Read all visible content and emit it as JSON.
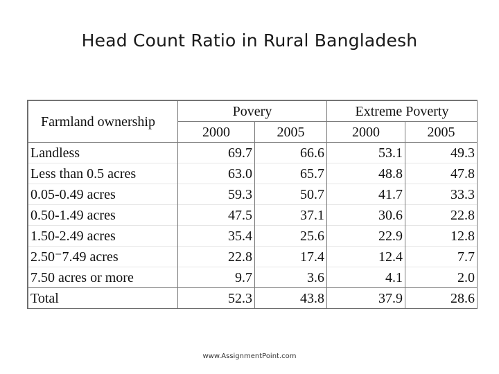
{
  "slide": {
    "title": "Head Count Ratio in Rural Bangladesh",
    "footer": "www.AssignmentPoint.com"
  },
  "table": {
    "row_header": "Farmland ownership",
    "groups": [
      "Povery",
      "Extreme Poverty"
    ],
    "years": [
      "2000",
      "2005",
      "2000",
      "2005"
    ],
    "rows": [
      {
        "label": "Landless",
        "values": [
          "69.7",
          "66.6",
          "53.1",
          "49.3"
        ]
      },
      {
        "label": "Less than 0.5 acres",
        "values": [
          "63.0",
          "65.7",
          "48.8",
          "47.8"
        ]
      },
      {
        "label": "0.05-0.49 acres",
        "values": [
          "59.3",
          "50.7",
          "41.7",
          "33.3"
        ]
      },
      {
        "label": "0.50-1.49 acres",
        "values": [
          "47.5",
          "37.1",
          "30.6",
          "22.8"
        ]
      },
      {
        "label": "1.50-2.49 acres",
        "values": [
          "35.4",
          "25.6",
          "22.9",
          "12.8"
        ]
      },
      {
        "label": "2.50⁻7.49 acres",
        "values": [
          "22.8",
          "17.4",
          "12.4",
          "7.7"
        ]
      },
      {
        "label": "7.50 acres or more",
        "values": [
          "9.7",
          "3.6",
          "4.1",
          "2.0"
        ]
      },
      {
        "label": "Total",
        "values": [
          "52.3",
          "43.8",
          "37.9",
          "28.6"
        ]
      }
    ]
  }
}
